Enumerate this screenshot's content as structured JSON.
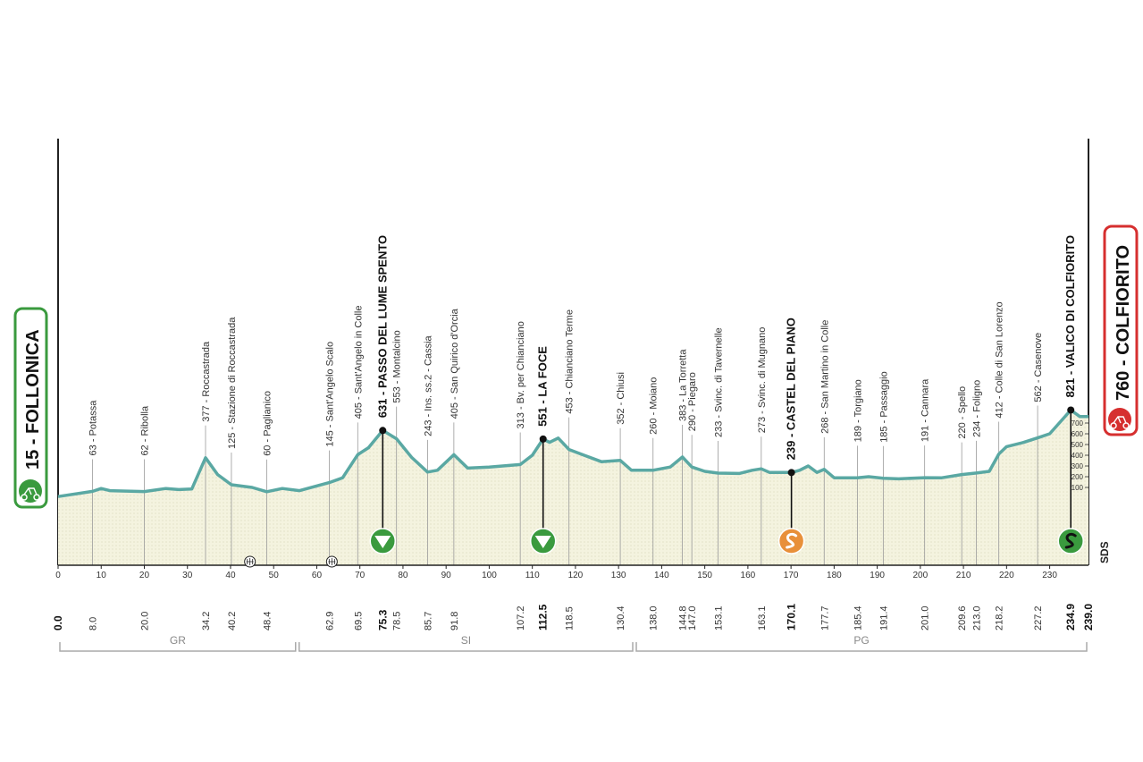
{
  "chart_data": {
    "type": "area",
    "color": "#5aa8a3",
    "fill": "#f4f3df",
    "start": {
      "label": "15 - FOLLONICA",
      "km": 0,
      "km_label": "0.0"
    },
    "finish": {
      "label": "760 - COLFIORITO",
      "km": 239,
      "km_label": "239.0"
    },
    "xlim": [
      0,
      239
    ],
    "ylim": [
      -625,
      3350
    ],
    "xticks": [
      0,
      10,
      20,
      30,
      40,
      50,
      60,
      70,
      80,
      90,
      100,
      110,
      120,
      130,
      140,
      150,
      160,
      170,
      180,
      190,
      200,
      210,
      220,
      230
    ],
    "yticks": [
      100,
      200,
      300,
      400,
      500,
      600,
      700
    ],
    "profile": {
      "x": [
        0,
        8,
        10,
        12,
        20,
        25,
        28,
        31,
        34.2,
        37,
        40.2,
        45,
        48.4,
        52,
        56,
        62.9,
        66,
        69.5,
        72,
        75.3,
        78.5,
        82,
        85.7,
        88,
        91.8,
        95,
        100,
        107.2,
        110,
        112.5,
        114,
        116,
        118.5,
        122,
        126,
        130.4,
        133,
        138,
        142,
        144.8,
        147,
        150,
        153.1,
        158,
        161,
        163.1,
        165,
        170.1,
        172,
        174,
        176,
        177.7,
        180,
        185.4,
        188,
        191.4,
        195,
        201,
        205,
        209.6,
        213,
        216,
        218.2,
        220,
        224,
        227.2,
        230,
        234.9,
        237,
        239
      ],
      "y": [
        15,
        63,
        90,
        70,
        62,
        90,
        80,
        85,
        377,
        220,
        125,
        100,
        60,
        90,
        70,
        145,
        190,
        405,
        470,
        631,
        553,
        380,
        243,
        260,
        405,
        280,
        290,
        313,
        400,
        551,
        520,
        560,
        453,
        400,
        340,
        352,
        260,
        260,
        290,
        383,
        290,
        250,
        233,
        230,
        260,
        273,
        240,
        239,
        260,
        300,
        240,
        268,
        190,
        189,
        200,
        185,
        180,
        191,
        190,
        220,
        234,
        250,
        412,
        480,
        520,
        562,
        600,
        821,
        760,
        760
      ]
    },
    "waypoints": [
      {
        "name": "63 - Potassa",
        "km": 8.0,
        "km_label": "8.0"
      },
      {
        "name": "62 - Ribolla",
        "km": 20.0,
        "km_label": "20.0"
      },
      {
        "name": "377 - Roccastrada",
        "km": 34.2,
        "km_label": "34.2"
      },
      {
        "name": "125 - Stazione di Roccastrada",
        "km": 40.2,
        "km_label": "40.2"
      },
      {
        "name": "60 - Paglianico",
        "km": 48.4,
        "km_label": "48.4"
      },
      {
        "name": "145 - Sant'Angelo Scalo",
        "km": 62.9,
        "km_label": "62.9"
      },
      {
        "name": "405 - Sant'Angelo in Colle",
        "km": 69.5,
        "km_label": "69.5"
      },
      {
        "name": "631 - PASSO DEL LUME SPENTO",
        "km": 75.3,
        "km_label": "75.3",
        "marker": "gpm"
      },
      {
        "name": "553 - Montalcino",
        "km": 78.5,
        "km_label": "78.5"
      },
      {
        "name": "243 - Ins. ss.2 - Cassia",
        "km": 85.7,
        "km_label": "85.7"
      },
      {
        "name": "405 - San Quirico d'Orcia",
        "km": 91.8,
        "km_label": "91.8"
      },
      {
        "name": "313 - Bv. per Chianciano",
        "km": 107.2,
        "km_label": "107.2"
      },
      {
        "name": "551 - LA FOCE",
        "km": 112.5,
        "km_label": "112.5",
        "marker": "gpm"
      },
      {
        "name": "453 - Chianciano Terme",
        "km": 118.5,
        "km_label": "118.5"
      },
      {
        "name": "352 - Chiusi",
        "km": 130.4,
        "km_label": "130.4"
      },
      {
        "name": "260 - Moiano",
        "km": 138.0,
        "km_label": "138.0"
      },
      {
        "name": "383 - La Torretta",
        "km": 144.8,
        "km_label": "144.8"
      },
      {
        "name": "290 - Piegaro",
        "km": 147.0,
        "km_label": "147.0"
      },
      {
        "name": "233 - Svinc. di Tavernelle",
        "km": 153.1,
        "km_label": "153.1"
      },
      {
        "name": "273 - Svinc. di Mugnano",
        "km": 163.1,
        "km_label": "163.1"
      },
      {
        "name": "239 - CASTEL DEL PIANO",
        "km": 170.1,
        "km_label": "170.1",
        "marker": "sprint"
      },
      {
        "name": "268 - San Martino in Colle",
        "km": 177.7,
        "km_label": "177.7"
      },
      {
        "name": "189 - Torgiano",
        "km": 185.4,
        "km_label": "185.4"
      },
      {
        "name": "185 - Passaggio",
        "km": 191.4,
        "km_label": "191.4"
      },
      {
        "name": "191 - Cannara",
        "km": 201.0,
        "km_label": "201.0"
      },
      {
        "name": "220 - Spello",
        "km": 209.6,
        "km_label": "209.6"
      },
      {
        "name": "234 - Foligno",
        "km": 213.0,
        "km_label": "213.0"
      },
      {
        "name": "412 - Colle di San Lorenzo",
        "km": 218.2,
        "km_label": "218.2"
      },
      {
        "name": "562 - Casenove",
        "km": 227.2,
        "km_label": "227.2"
      },
      {
        "name": "821 - VALICO DI COLFIORITO",
        "km": 234.9,
        "km_label": "234.9",
        "marker": "final"
      }
    ],
    "feed_zones_km": [
      44.5,
      63.5
    ],
    "regions": [
      {
        "name": "GR",
        "from": 0,
        "to": 55.5
      },
      {
        "name": "SI",
        "from": 55.5,
        "to": 133.7
      },
      {
        "name": "PG",
        "from": 133.7,
        "to": 239
      }
    ],
    "logo": "SDS"
  }
}
